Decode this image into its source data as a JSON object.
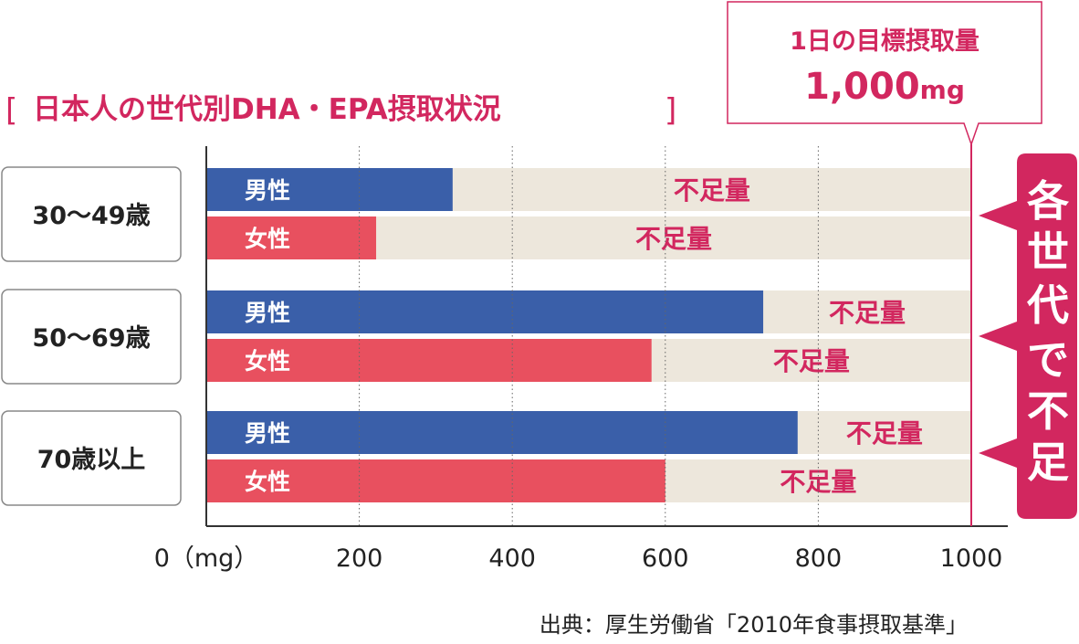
{
  "colors": {
    "male": "#3a5fa9",
    "female": "#e8505f",
    "deficit_bg": "#ede7dc",
    "accent": "#d2275f",
    "axis": "#333333"
  },
  "bracket_left": "[",
  "bracket_right": "]",
  "callout": {
    "line1": "1日の目標摂取量",
    "line2_number": "1,000",
    "line2_unit": "mg"
  },
  "side_banner": [
    "各",
    "世",
    "代",
    "で",
    "不",
    "足"
  ],
  "source": "出典：厚生労働省「2010年食事摂取基準」",
  "chart_data": {
    "type": "bar",
    "orientation": "horizontal",
    "title": "日本人の世代別DHA・EPA摂取状況",
    "xlim": [
      0,
      1000
    ],
    "x_ticks": [
      0,
      200,
      400,
      600,
      800,
      1000
    ],
    "x_tick_labels": [
      "0（mg）",
      "200",
      "400",
      "600",
      "800",
      "1000"
    ],
    "grid": "vertical dotted",
    "target_value": 1000,
    "deficit_label": "不足量",
    "groups": [
      {
        "label": "30〜49歳",
        "bars": [
          {
            "series": "男性",
            "value": 322
          },
          {
            "series": "女性",
            "value": 222
          }
        ]
      },
      {
        "label": "50〜69歳",
        "bars": [
          {
            "series": "男性",
            "value": 728
          },
          {
            "series": "女性",
            "value": 582
          }
        ]
      },
      {
        "label": "70歳以上",
        "bars": [
          {
            "series": "男性",
            "value": 773
          },
          {
            "series": "女性",
            "value": 600
          }
        ]
      }
    ]
  }
}
